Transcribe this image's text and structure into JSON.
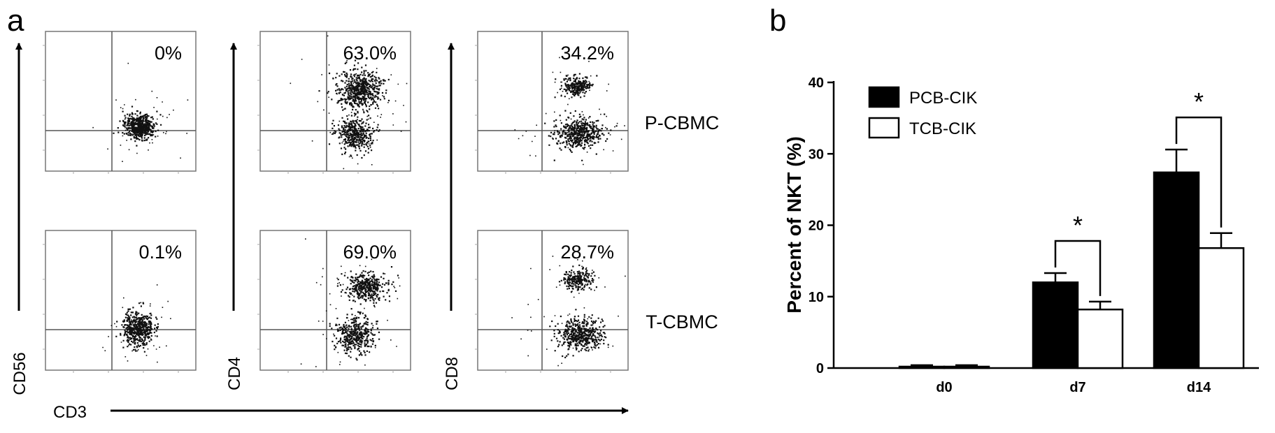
{
  "panel_a": {
    "label": "a",
    "rows": [
      {
        "label": "P-CBMC",
        "percents": [
          "0%",
          "63.0%",
          "34.2%"
        ]
      },
      {
        "label": "T-CBMC",
        "percents": [
          "0.1%",
          "69.0%",
          "28.7%"
        ]
      }
    ],
    "y_axes": [
      "CD56",
      "CD4",
      "CD8"
    ],
    "x_axis": "CD3"
  },
  "panel_b": {
    "label": "b"
  },
  "chart_data": {
    "type": "bar",
    "categories": [
      "d0",
      "d7",
      "d14"
    ],
    "series": [
      {
        "name": "PCB-CIK",
        "values": [
          0.2,
          12.0,
          27.4
        ],
        "errors": [
          0.2,
          1.3,
          3.2
        ],
        "color": "#000000"
      },
      {
        "name": "TCB-CIK",
        "values": [
          0.2,
          8.2,
          16.8
        ],
        "errors": [
          0.2,
          1.1,
          2.1
        ],
        "color": "#ffffff"
      }
    ],
    "ylabel": "Percent of NKT (%)",
    "xlabel": "",
    "ylim": [
      0,
      40
    ],
    "yticks": [
      0,
      10,
      20,
      30,
      40
    ],
    "legend_position": "top-left",
    "grid": false,
    "significance": [
      {
        "category": "d7",
        "label": "*"
      },
      {
        "category": "d14",
        "label": "*"
      }
    ]
  }
}
